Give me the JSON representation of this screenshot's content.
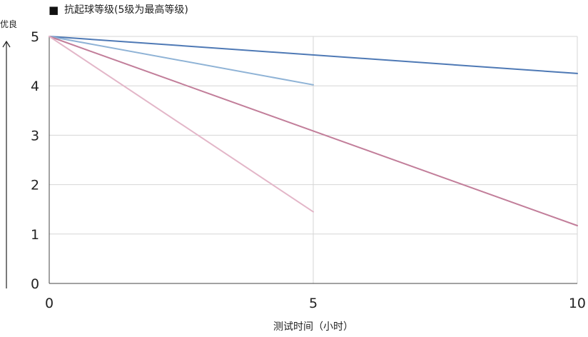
{
  "chart_data": {
    "type": "line",
    "title": "抗起球等级(5级为最高等级)",
    "title_marker": "■",
    "ylabel": "优良",
    "xlabel": "测试时间（小时）",
    "xlim": [
      0,
      10
    ],
    "ylim": [
      0,
      5
    ],
    "x_ticks": [
      "0",
      "5",
      "10"
    ],
    "y_ticks": [
      "0",
      "1",
      "2",
      "3",
      "4",
      "5"
    ],
    "grid": true,
    "legend": "none",
    "series": [
      {
        "color": "#4e79b5",
        "x": [
          0,
          10
        ],
        "y": [
          5,
          4.25
        ]
      },
      {
        "color": "#8fb3d6",
        "x": [
          0,
          5
        ],
        "y": [
          5,
          4.02
        ]
      },
      {
        "color": "#c27e9a",
        "x": [
          0,
          10
        ],
        "y": [
          5,
          1.17
        ]
      },
      {
        "color": "#e3b6c8",
        "x": [
          0,
          5
        ],
        "y": [
          5,
          1.45
        ]
      }
    ],
    "colors": {
      "grid": "#d6d6d6",
      "axis": "#444444",
      "text": "#222222"
    }
  }
}
